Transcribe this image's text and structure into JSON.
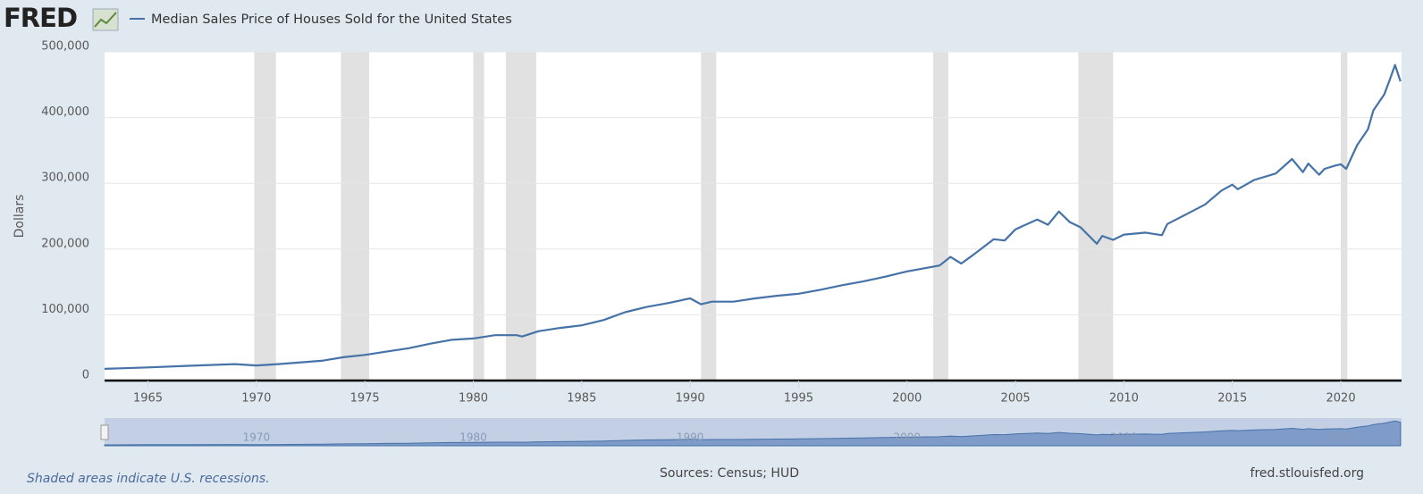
{
  "header": {
    "logo": "FRED"
  },
  "chart_data": {
    "type": "line",
    "y_label": "Dollars",
    "x": [
      1963,
      1965,
      1967,
      1969,
      1970,
      1971,
      1973,
      1974,
      1975,
      1976,
      1977,
      1978,
      1979,
      1980,
      1981,
      1982,
      1982.25,
      1983,
      1984,
      1985,
      1986,
      1987,
      1988,
      1989,
      1990,
      1990.5,
      1991,
      1992,
      1993,
      1994,
      1995,
      1996,
      1997,
      1998,
      1999,
      2000,
      2001,
      2001.5,
      2002,
      2002.5,
      2003,
      2004,
      2004.5,
      2005,
      2006,
      2006.5,
      2007,
      2007.5,
      2008,
      2008.75,
      2009,
      2009.5,
      2010,
      2011,
      2011.75,
      2012,
      2013,
      2013.75,
      2014,
      2014.5,
      2015,
      2015.25,
      2016,
      2017,
      2017.75,
      2018.25,
      2018.5,
      2019,
      2019.25,
      2019.75,
      2020,
      2020.25,
      2020.75,
      2021.25,
      2021.5,
      2021.75,
      2022,
      2022.25,
      2022.5,
      2022.75
    ],
    "series": [
      {
        "name": "Median Sales Price of Houses Sold for the United States",
        "color": "#4572a7",
        "values": [
          17800,
          20000,
          22500,
          25000,
          23000,
          25000,
          30000,
          35500,
          39000,
          44000,
          49000,
          56000,
          62000,
          64000,
          69000,
          69000,
          67000,
          75000,
          80000,
          84000,
          92000,
          104000,
          112000,
          118000,
          125000,
          116000,
          120000,
          120000,
          125000,
          129000,
          132000,
          138000,
          145000,
          151000,
          158000,
          166000,
          172000,
          175000,
          188000,
          178000,
          190000,
          215000,
          213000,
          230000,
          245000,
          237000,
          257000,
          241000,
          233000,
          208000,
          220000,
          214000,
          222000,
          225000,
          221000,
          238000,
          255000,
          268000,
          275000,
          289000,
          298000,
          291000,
          305000,
          315000,
          337000,
          317000,
          330000,
          313000,
          322000,
          327000,
          329000,
          322000,
          358000,
          382000,
          411000,
          423000,
          435000,
          457000,
          480000,
          455000
        ]
      }
    ],
    "recessions": [
      [
        1969.9,
        1970.9
      ],
      [
        1973.9,
        1975.2
      ],
      [
        1980.0,
        1980.5
      ],
      [
        1981.5,
        1982.9
      ],
      [
        1990.5,
        1991.2
      ],
      [
        2001.2,
        2001.9
      ],
      [
        2007.9,
        2009.5
      ],
      [
        2020.0,
        2020.3
      ]
    ],
    "xlim": [
      1963,
      2022.8
    ],
    "ylim": [
      0,
      500000
    ],
    "xticks": [
      1965,
      1970,
      1975,
      1980,
      1985,
      1990,
      1995,
      2000,
      2005,
      2010,
      2015,
      2020
    ],
    "yticks": [
      0,
      {
        "value": 100000,
        "label": "100,000"
      },
      {
        "value": 200000,
        "label": "200,000"
      },
      {
        "value": 300000,
        "label": "300,000"
      },
      {
        "value": 400000,
        "label": "400,000"
      },
      {
        "value": 500000,
        "label": "500,000"
      }
    ],
    "navigator_ticks": [
      1970,
      1980,
      1990,
      2000,
      2010,
      2020
    ],
    "grid": true,
    "recession_note": "Shaded areas indicate U.S. recessions.",
    "source": "Sources: Census; HUD",
    "site": "fred.stlouisfed.org"
  }
}
